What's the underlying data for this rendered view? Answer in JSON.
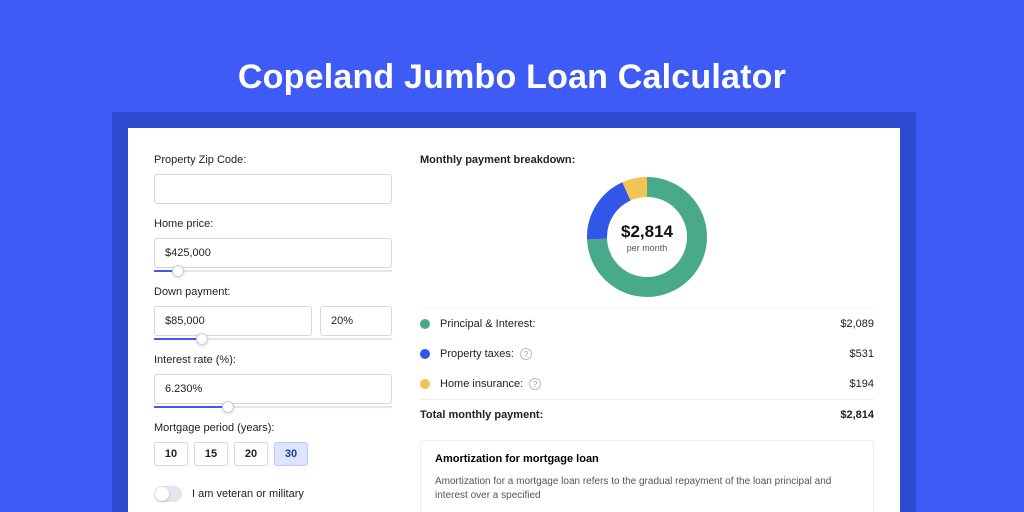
{
  "colors": {
    "page_bg": "#3e5cf5",
    "shadow_bg": "#2d4bd0",
    "card_bg": "#ffffff",
    "text_primary": "#222222",
    "text_muted": "#555555",
    "border": "#d5d7de",
    "slider_fill": "#3e5cf5",
    "slider_rest": "#e3e6ef",
    "period_active_bg": "#dce4ff"
  },
  "title": "Copeland Jumbo Loan Calculator",
  "form": {
    "zip": {
      "label": "Property Zip Code:",
      "value": ""
    },
    "home_price": {
      "label": "Home price:",
      "value": "$425,000",
      "slider_pct": 10
    },
    "down_payment": {
      "label": "Down payment:",
      "value": "$85,000",
      "pct": "20%",
      "slider_pct": 20
    },
    "interest": {
      "label": "Interest rate (%):",
      "value": "6.230%",
      "slider_pct": 31
    },
    "period": {
      "label": "Mortgage period (years):",
      "options": [
        "10",
        "15",
        "20",
        "30"
      ],
      "selected": "30"
    },
    "veteran": {
      "label": "I am veteran or military",
      "checked": false
    }
  },
  "breakdown": {
    "title": "Monthly payment breakdown:",
    "center_value": "$2,814",
    "center_sub": "per month",
    "donut": {
      "segments": [
        {
          "key": "principal_interest",
          "color": "#48aa8a",
          "pct": 74.2
        },
        {
          "key": "property_taxes",
          "color": "#3256e8",
          "pct": 18.9
        },
        {
          "key": "home_insurance",
          "color": "#f1c453",
          "pct": 6.9
        }
      ],
      "radius": 50,
      "stroke": 20,
      "hole_bg": "#ffffff"
    },
    "legend": [
      {
        "color": "#48aa8a",
        "label": "Principal & Interest:",
        "value": "$2,089",
        "help": false
      },
      {
        "color": "#3256e8",
        "label": "Property taxes:",
        "value": "$531",
        "help": true
      },
      {
        "color": "#f1c453",
        "label": "Home insurance:",
        "value": "$194",
        "help": true
      }
    ],
    "total": {
      "label": "Total monthly payment:",
      "value": "$2,814"
    }
  },
  "amortization": {
    "title": "Amortization for mortgage loan",
    "body": "Amortization for a mortgage loan refers to the gradual repayment of the loan principal and interest over a specified"
  }
}
